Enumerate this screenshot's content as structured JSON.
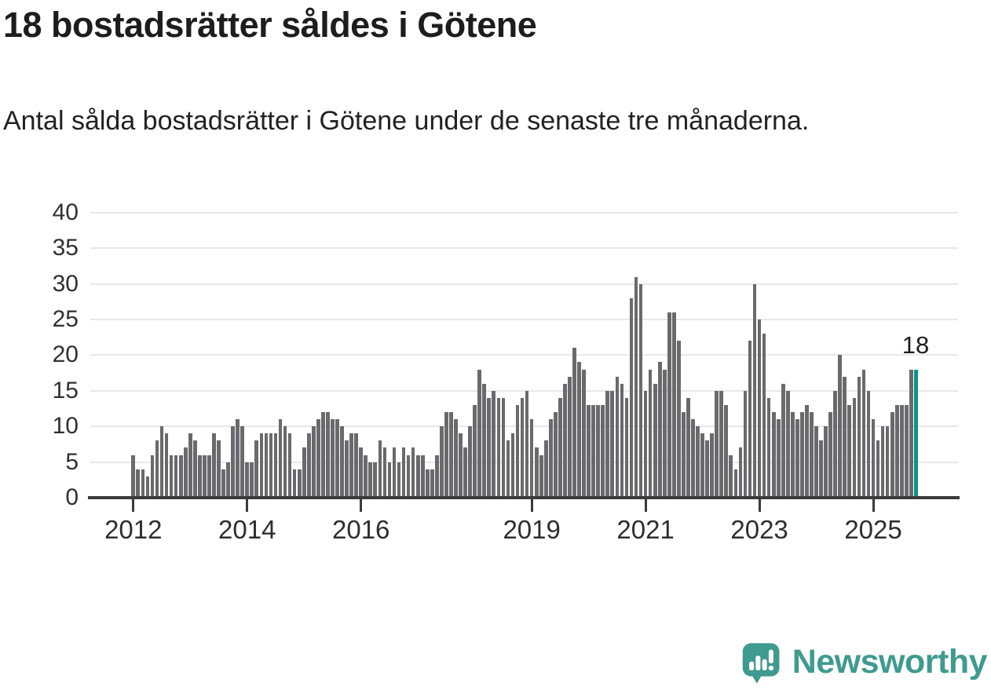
{
  "title": "18 bostadsrätter såldes i Götene",
  "subtitle": "Antal sålda bostadsrätter i Götene under de senaste tre månaderna.",
  "footer": {
    "brand": "Newsworthy",
    "logo_icon": "speech-bubble-bar-chart-exclamation-icon"
  },
  "colors": {
    "bar": "#6a6a6e",
    "highlight": "#0a948c",
    "logo_teal": "#3f9a90",
    "axis": "#3b3b3b",
    "gridline": "#e8e8e8",
    "text": "#1d1d1d"
  },
  "chart_data": {
    "type": "bar",
    "title": "18 bostadsrätter såldes i Götene",
    "subtitle": "Antal sålda bostadsrätter i Götene under de senaste tre månaderna.",
    "ylabel": "",
    "xlabel": "",
    "ylim": [
      0,
      40
    ],
    "grid": "horizontal",
    "y_ticks": [
      0,
      5,
      10,
      15,
      20,
      25,
      30,
      35,
      40
    ],
    "x_tick_labels": [
      "2012",
      "2014",
      "2016",
      "2019",
      "2021",
      "2023",
      "2025"
    ],
    "x_tick_month_offsets": [
      0,
      24,
      48,
      84,
      108,
      132,
      156
    ],
    "x_start_month": "2012-01",
    "x_end_month": "2025-10",
    "frequency": "monthly-rolling-3-month-sum",
    "last_value_label": "18",
    "highlight_last_bar": true,
    "values": [
      6,
      4,
      4,
      3,
      6,
      8,
      10,
      9,
      6,
      6,
      6,
      7,
      9,
      8,
      6,
      6,
      6,
      9,
      8,
      4,
      5,
      10,
      11,
      10,
      5,
      5,
      8,
      9,
      9,
      9,
      9,
      11,
      10,
      9,
      4,
      4,
      7,
      9,
      10,
      11,
      12,
      12,
      11,
      11,
      10,
      8,
      9,
      9,
      7,
      6,
      5,
      5,
      8,
      7,
      5,
      7,
      5,
      7,
      6,
      7,
      6,
      6,
      4,
      4,
      6,
      10,
      12,
      12,
      11,
      9,
      7,
      10,
      13,
      18,
      16,
      14,
      15,
      14,
      14,
      8,
      9,
      13,
      14,
      15,
      11,
      7,
      6,
      8,
      11,
      12,
      14,
      16,
      17,
      21,
      19,
      18,
      13,
      13,
      13,
      13,
      15,
      15,
      17,
      16,
      14,
      28,
      31,
      30,
      15,
      18,
      16,
      19,
      18,
      26,
      26,
      22,
      12,
      14,
      11,
      10,
      9,
      8,
      9,
      15,
      15,
      13,
      6,
      4,
      7,
      15,
      22,
      30,
      25,
      23,
      14,
      12,
      11,
      16,
      15,
      12,
      11,
      12,
      13,
      12,
      10,
      8,
      10,
      12,
      15,
      20,
      17,
      13,
      14,
      17,
      18,
      15,
      11,
      8,
      10,
      10,
      12,
      13,
      13,
      13,
      18,
      18
    ]
  }
}
